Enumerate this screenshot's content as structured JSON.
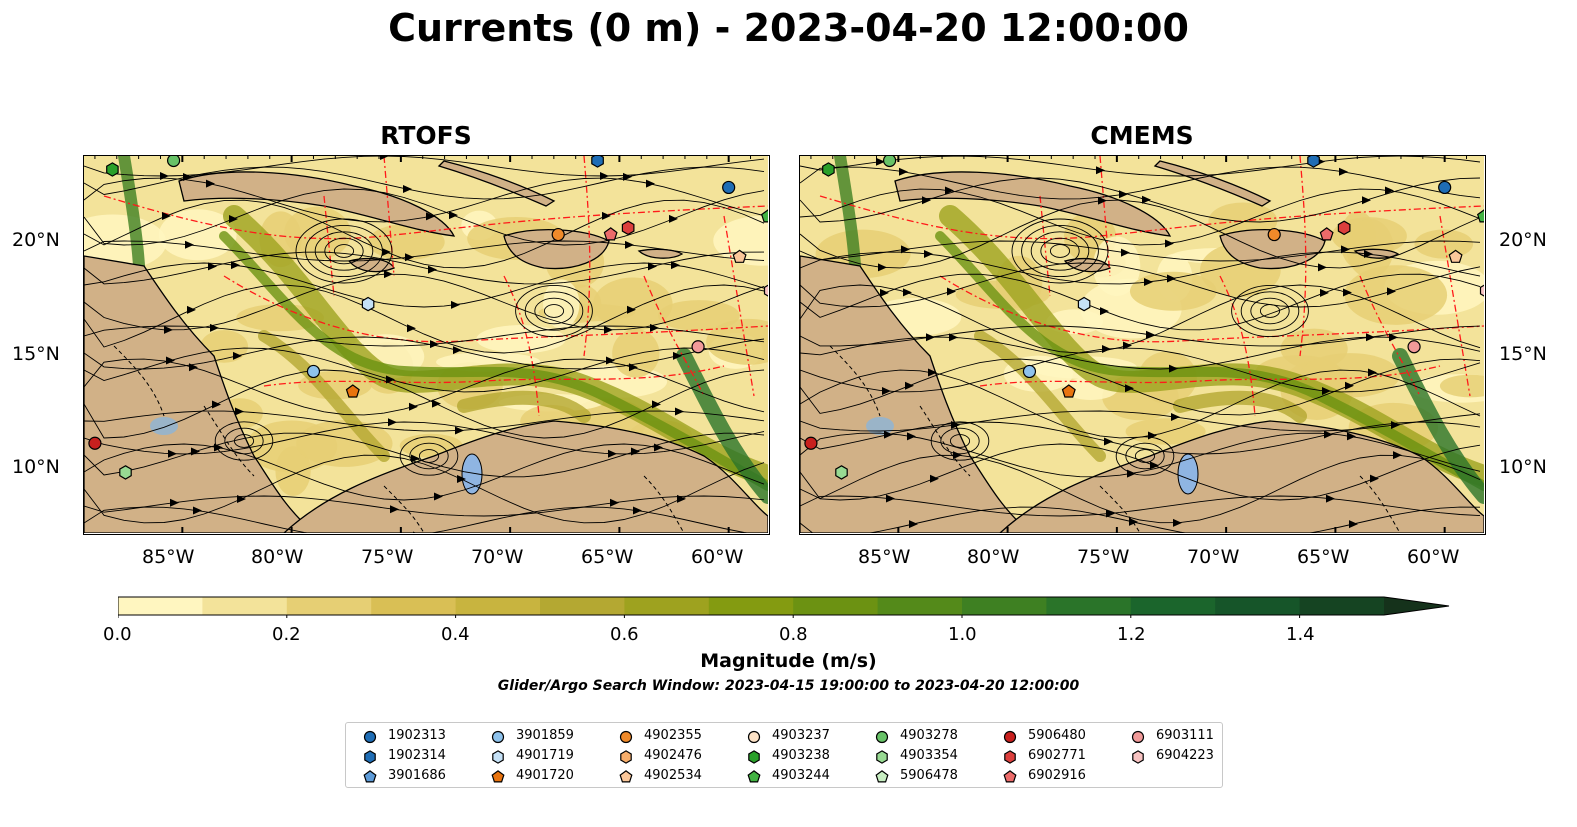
{
  "title": "Currents (0 m) - 2023-04-20 12:00:00",
  "panels": [
    {
      "id": "rtofs",
      "title": "RTOFS"
    },
    {
      "id": "cmems",
      "title": "CMEMS"
    }
  ],
  "axes": {
    "x_ticks": [
      "85°W",
      "80°W",
      "75°W",
      "70°W",
      "65°W",
      "60°W"
    ],
    "y_ticks": [
      "20°N",
      "15°N",
      "10°N"
    ]
  },
  "colorbar": {
    "label": "Magnitude (m/s)",
    "ticks": [
      "0.0",
      "0.2",
      "0.4",
      "0.6",
      "0.8",
      "1.0",
      "1.2",
      "1.4"
    ],
    "range": [
      0,
      1.5
    ],
    "extend": "max",
    "colors": [
      "#fff6c0",
      "#f3e39a",
      "#e6cf74",
      "#d9bf55",
      "#c8b43f",
      "#b4a832",
      "#9ea21f",
      "#849b11",
      "#6c9212",
      "#548a1a",
      "#3e8022",
      "#2a7429",
      "#1b652c",
      "#165529",
      "#154422",
      "#15321b"
    ]
  },
  "search_window": "Glider/Argo Search Window: 2023-04-15 19:00:00 to 2023-04-20 12:00:00",
  "legend": [
    {
      "id": "1902313",
      "shape": "circle",
      "color": "#1f6db5"
    },
    {
      "id": "1902314",
      "shape": "hexagon",
      "color": "#1f6db5"
    },
    {
      "id": "3901686",
      "shape": "pentagon",
      "color": "#5d9bd8"
    },
    {
      "id": "3901859",
      "shape": "circle",
      "color": "#8ec2ec"
    },
    {
      "id": "4901719",
      "shape": "hexagon",
      "color": "#c5e1f6"
    },
    {
      "id": "4901720",
      "shape": "pentagon",
      "color": "#e8730e"
    },
    {
      "id": "4902355",
      "shape": "circle",
      "color": "#f08a2a"
    },
    {
      "id": "4902476",
      "shape": "hexagon",
      "color": "#f7ae6b"
    },
    {
      "id": "4902534",
      "shape": "pentagon",
      "color": "#fbc79a"
    },
    {
      "id": "4903237",
      "shape": "circle",
      "color": "#fde2c6"
    },
    {
      "id": "4903238",
      "shape": "hexagon",
      "color": "#2aa02a"
    },
    {
      "id": "4903244",
      "shape": "pentagon",
      "color": "#43b343"
    },
    {
      "id": "4903278",
      "shape": "circle",
      "color": "#67c267"
    },
    {
      "id": "4903354",
      "shape": "hexagon",
      "color": "#98da93"
    },
    {
      "id": "5906478",
      "shape": "pentagon",
      "color": "#c8eec2"
    },
    {
      "id": "5906480",
      "shape": "circle",
      "color": "#c8201e"
    },
    {
      "id": "6902771",
      "shape": "hexagon",
      "color": "#dc3f3d"
    },
    {
      "id": "6902916",
      "shape": "pentagon",
      "color": "#ec6b6a"
    },
    {
      "id": "6903111",
      "shape": "circle",
      "color": "#f19a99"
    },
    {
      "id": "6904223",
      "shape": "hexagon",
      "color": "#f8c3c2"
    }
  ],
  "platforms": [
    {
      "id": "1902313",
      "lon": -60,
      "lat": 22.4
    },
    {
      "id": "1902314",
      "lon": -66,
      "lat": 23.6
    },
    {
      "id": "3901859",
      "lon": -79,
      "lat": 14.2
    },
    {
      "id": "4901719",
      "lon": -76.5,
      "lat": 17.2
    },
    {
      "id": "4901720",
      "lon": -77.2,
      "lat": 13.3
    },
    {
      "id": "4902355",
      "lon": -67.8,
      "lat": 20.3
    },
    {
      "id": "4902534",
      "lon": -59.5,
      "lat": 19.3
    },
    {
      "id": "4903238",
      "lon": -88.2,
      "lat": 23.2
    },
    {
      "id": "4903244",
      "lon": -58.2,
      "lat": 21.1
    },
    {
      "id": "4903278",
      "lon": -85.4,
      "lat": 23.6
    },
    {
      "id": "4903354",
      "lon": -87.6,
      "lat": 9.7
    },
    {
      "id": "5906480",
      "lon": -89,
      "lat": 11
    },
    {
      "id": "6902771",
      "lon": -64.6,
      "lat": 20.6
    },
    {
      "id": "6902916",
      "lon": -65.4,
      "lat": 20.3
    },
    {
      "id": "6903111",
      "lon": -61.4,
      "lat": 15.3
    },
    {
      "id": "6904223",
      "lon": -58.1,
      "lat": 17.8
    }
  ],
  "map_extent": {
    "lon": [
      -89.5,
      -58.2
    ],
    "lat": [
      7.0,
      23.8
    ]
  }
}
